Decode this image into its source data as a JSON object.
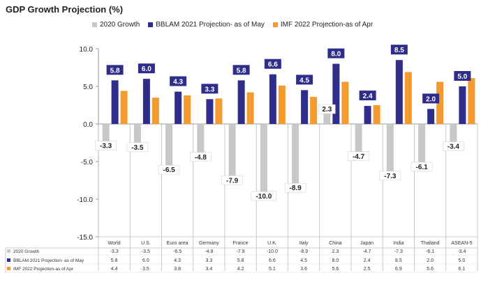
{
  "chart_data": {
    "type": "bar",
    "title": "GDP Growth Projection (%)",
    "categories": [
      "World",
      "U.S.",
      "Euro area",
      "Germany",
      "France",
      "U.K.",
      "Italy",
      "China",
      "Japan",
      "India",
      "Thailand",
      "ASEAN-5"
    ],
    "series": [
      {
        "name": "2020 Growth",
        "color": "#c8c8c8",
        "values": [
          -3.3,
          -3.5,
          -6.5,
          -4.8,
          -7.9,
          -10.0,
          -8.9,
          2.3,
          -4.7,
          -7.3,
          -6.1,
          -3.4
        ]
      },
      {
        "name": "BBLAM 2021 Projection- as of May",
        "color": "#2e2e8a",
        "values": [
          5.8,
          6.0,
          4.3,
          3.3,
          5.8,
          6.6,
          4.5,
          8.0,
          2.4,
          8.5,
          2.0,
          5.0
        ]
      },
      {
        "name": "IMF 2022 Projection-as of Apr",
        "color": "#f59a2f",
        "values": [
          4.4,
          3.5,
          3.8,
          3.4,
          4.2,
          5.1,
          3.6,
          5.6,
          2.5,
          6.9,
          5.6,
          6.1
        ]
      }
    ],
    "ylim": [
      -15,
      10
    ],
    "yticks": [
      "10.0",
      "5.0",
      "0.0",
      "-5.0",
      "-10.0",
      "-15.0"
    ],
    "ytick_values": [
      10,
      5,
      0,
      -5,
      -10,
      -15
    ],
    "data_labels": {
      "gray": [
        "-3.3",
        "-3.5",
        "-6.5",
        "-4.8",
        "-7.9",
        "-10.0",
        "-8.9",
        "2.3",
        "-4.7",
        "-7.3",
        "-6.1",
        "-3.4"
      ],
      "navy": [
        "5.8",
        "6.0",
        "4.3",
        "3.3",
        "5.8",
        "6.6",
        "4.5",
        "8.0",
        "2.4",
        "8.5",
        "2.0",
        "5.0"
      ]
    },
    "table": {
      "row_labels": [
        "2020 Growth",
        "BBLAM 2021 Projection- as of May",
        "IMF 2022 Projection-as of Apr"
      ],
      "rows": [
        [
          "-3.3",
          "-3.5",
          "-6.5",
          "-4.8",
          "-7.9",
          "-10.0",
          "-8.9",
          "2.3",
          "-4.7",
          "-7.3",
          "-6.1",
          "-3.4"
        ],
        [
          "5.8",
          "6.0",
          "4.3",
          "3.3",
          "5.8",
          "6.6",
          "4.5",
          "8.0",
          "2.4",
          "8.5",
          "2.0",
          "5.0"
        ],
        [
          "4.4",
          "3.5",
          "3.8",
          "3.4",
          "4.2",
          "5.1",
          "3.6",
          "5.6",
          "2.5",
          "6.9",
          "5.6",
          "6.1"
        ]
      ]
    }
  }
}
